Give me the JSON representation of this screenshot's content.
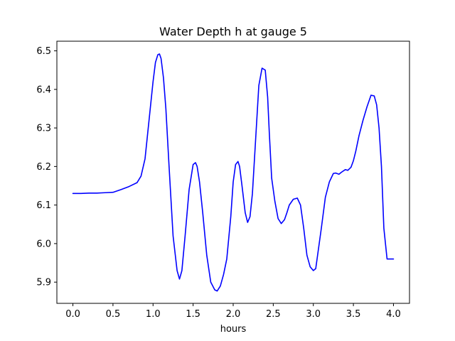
{
  "chart_data": {
    "type": "line",
    "title": "Water Depth h at gauge 5",
    "xlabel": "hours",
    "ylabel": "",
    "xlim": [
      -0.2,
      4.2
    ],
    "ylim": [
      5.845,
      6.525
    ],
    "xticks": [
      0.0,
      0.5,
      1.0,
      1.5,
      2.0,
      2.5,
      3.0,
      3.5,
      4.0
    ],
    "xtick_labels": [
      "0.0",
      "0.5",
      "1.0",
      "1.5",
      "2.0",
      "2.5",
      "3.0",
      "3.5",
      "4.0"
    ],
    "yticks": [
      5.9,
      6.0,
      6.1,
      6.2,
      6.3,
      6.4,
      6.5
    ],
    "ytick_labels": [
      "5.9",
      "6.0",
      "6.1",
      "6.2",
      "6.3",
      "6.4",
      "6.5"
    ],
    "grid": false,
    "legend": false,
    "series": [
      {
        "color": "#0000ff",
        "x": [
          0.0,
          0.1,
          0.2,
          0.3,
          0.4,
          0.5,
          0.6,
          0.7,
          0.8,
          0.85,
          0.9,
          0.95,
          1.0,
          1.03,
          1.06,
          1.08,
          1.1,
          1.13,
          1.16,
          1.2,
          1.25,
          1.3,
          1.33,
          1.36,
          1.4,
          1.45,
          1.5,
          1.53,
          1.55,
          1.58,
          1.62,
          1.67,
          1.72,
          1.77,
          1.8,
          1.84,
          1.88,
          1.92,
          1.97,
          2.0,
          2.03,
          2.06,
          2.08,
          2.11,
          2.15,
          2.18,
          2.21,
          2.24,
          2.28,
          2.32,
          2.36,
          2.4,
          2.43,
          2.45,
          2.48,
          2.52,
          2.56,
          2.6,
          2.64,
          2.67,
          2.7,
          2.75,
          2.8,
          2.84,
          2.88,
          2.92,
          2.96,
          3.0,
          3.03,
          3.06,
          3.1,
          3.15,
          3.2,
          3.25,
          3.28,
          3.32,
          3.35,
          3.4,
          3.43,
          3.47,
          3.5,
          3.53,
          3.57,
          3.62,
          3.67,
          3.72,
          3.76,
          3.79,
          3.82,
          3.85,
          3.88,
          3.92,
          3.96,
          4.0
        ],
        "y": [
          6.13,
          6.13,
          6.131,
          6.131,
          6.132,
          6.133,
          6.14,
          6.148,
          6.158,
          6.175,
          6.22,
          6.32,
          6.42,
          6.47,
          6.49,
          6.492,
          6.48,
          6.43,
          6.35,
          6.2,
          6.02,
          5.93,
          5.908,
          5.93,
          6.02,
          6.14,
          6.205,
          6.21,
          6.2,
          6.16,
          6.08,
          5.97,
          5.9,
          5.88,
          5.877,
          5.89,
          5.92,
          5.96,
          6.07,
          6.16,
          6.205,
          6.213,
          6.2,
          6.15,
          6.08,
          6.055,
          6.07,
          6.13,
          6.27,
          6.41,
          6.455,
          6.45,
          6.38,
          6.29,
          6.17,
          6.11,
          6.065,
          6.052,
          6.062,
          6.08,
          6.1,
          6.115,
          6.118,
          6.1,
          6.04,
          5.97,
          5.94,
          5.93,
          5.935,
          5.98,
          6.04,
          6.12,
          6.16,
          6.182,
          6.183,
          6.18,
          6.185,
          6.192,
          6.19,
          6.198,
          6.215,
          6.24,
          6.28,
          6.32,
          6.355,
          6.385,
          6.383,
          6.36,
          6.3,
          6.2,
          6.04,
          5.96,
          5.96,
          5.96
        ]
      }
    ]
  }
}
